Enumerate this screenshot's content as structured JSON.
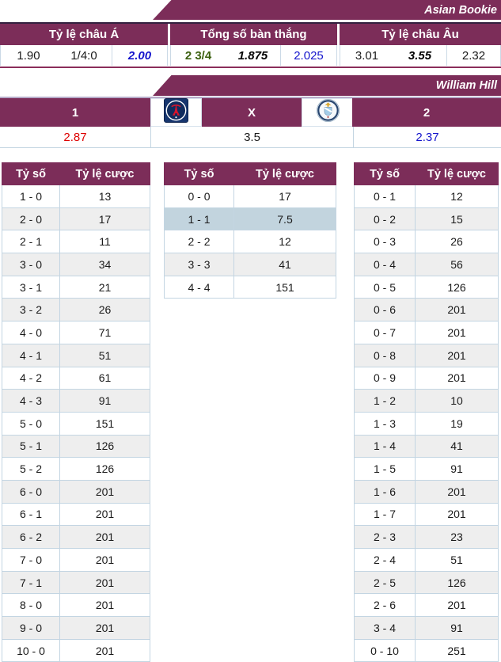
{
  "asian_section": {
    "title": "Asian Bookie",
    "columns": [
      "Tỷ lệ châu Á",
      "Tổng số bàn thắng",
      "Tỷ lệ châu Âu"
    ],
    "values": [
      {
        "text": "1.90",
        "style": "plain"
      },
      {
        "text": "1/4:0",
        "style": "plain"
      },
      {
        "text": "2.00",
        "style": "blue-bold-italic"
      },
      {
        "text": "2 3/4",
        "style": "green-bold"
      },
      {
        "text": "1.875",
        "style": "bold-italic"
      },
      {
        "text": "2.025",
        "style": "blue"
      },
      {
        "text": "3.01",
        "style": "plain"
      },
      {
        "text": "3.55",
        "style": "bold-italic"
      },
      {
        "text": "2.32",
        "style": "plain"
      }
    ]
  },
  "william_hill_section": {
    "title": "William Hill",
    "match_header": {
      "home": "1",
      "draw": "X",
      "away": "2"
    },
    "logos": {
      "home": "paris-saint-germain-crest",
      "away": "manchester-city-crest"
    },
    "odds": [
      {
        "value": "2.87",
        "style": "red"
      },
      {
        "value": "3.5",
        "style": "plain"
      },
      {
        "value": "2.37",
        "style": "blue"
      }
    ]
  },
  "score_tables": {
    "headers": [
      "Tỷ số",
      "Tỷ lệ cược"
    ],
    "home_win": {
      "rows": [
        [
          "1 - 0",
          "13"
        ],
        [
          "2 - 0",
          "17"
        ],
        [
          "2 - 1",
          "11"
        ],
        [
          "3 - 0",
          "34"
        ],
        [
          "3 - 1",
          "21"
        ],
        [
          "3 - 2",
          "26"
        ],
        [
          "4 - 0",
          "71"
        ],
        [
          "4 - 1",
          "51"
        ],
        [
          "4 - 2",
          "61"
        ],
        [
          "4 - 3",
          "91"
        ],
        [
          "5 - 0",
          "151"
        ],
        [
          "5 - 1",
          "126"
        ],
        [
          "5 - 2",
          "126"
        ],
        [
          "6 - 0",
          "201"
        ],
        [
          "6 - 1",
          "201"
        ],
        [
          "6 - 2",
          "201"
        ],
        [
          "7 - 0",
          "201"
        ],
        [
          "7 - 1",
          "201"
        ],
        [
          "8 - 0",
          "201"
        ],
        [
          "9 - 0",
          "201"
        ],
        [
          "10 - 0",
          "201"
        ]
      ]
    },
    "draw": {
      "rows": [
        [
          "0 - 0",
          "17"
        ],
        [
          "1 - 1",
          "7.5"
        ],
        [
          "2 - 2",
          "12"
        ],
        [
          "3 - 3",
          "41"
        ],
        [
          "4 - 4",
          "151"
        ]
      ],
      "highlight": 1
    },
    "away_win": {
      "rows": [
        [
          "0 - 1",
          "12"
        ],
        [
          "0 - 2",
          "15"
        ],
        [
          "0 - 3",
          "26"
        ],
        [
          "0 - 4",
          "56"
        ],
        [
          "0 - 5",
          "126"
        ],
        [
          "0 - 6",
          "201"
        ],
        [
          "0 - 7",
          "201"
        ],
        [
          "0 - 8",
          "201"
        ],
        [
          "0 - 9",
          "201"
        ],
        [
          "1 - 2",
          "10"
        ],
        [
          "1 - 3",
          "19"
        ],
        [
          "1 - 4",
          "41"
        ],
        [
          "1 - 5",
          "91"
        ],
        [
          "1 - 6",
          "201"
        ],
        [
          "1 - 7",
          "201"
        ],
        [
          "2 - 3",
          "23"
        ],
        [
          "2 - 4",
          "51"
        ],
        [
          "2 - 5",
          "126"
        ],
        [
          "2 - 6",
          "201"
        ],
        [
          "3 - 4",
          "91"
        ],
        [
          "0 - 10",
          "251"
        ]
      ]
    }
  },
  "colors": {
    "accent_purple": "#7C2D59",
    "highlight_row": "#C2D4DE",
    "red_odds": "#DE0000",
    "blue_odds": "#1414CC",
    "green_odds": "#3D6111"
  }
}
